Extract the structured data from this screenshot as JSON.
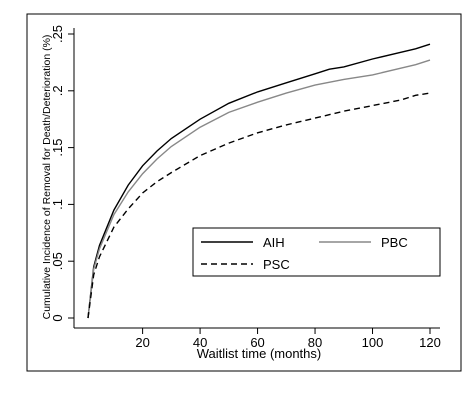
{
  "chart_data": {
    "type": "line",
    "xlabel": "Waitlist time (months)",
    "ylabel": "Cumulative Incidence of Removal for Death/Deterioration (%)",
    "xlim": [
      0,
      122
    ],
    "ylim": [
      0,
      0.25
    ],
    "xticks": [
      20,
      40,
      60,
      80,
      100,
      120
    ],
    "xtick_labels": [
      "20",
      "40",
      "60",
      "80",
      "100",
      "120"
    ],
    "yticks": [
      0,
      0.05,
      0.1,
      0.15,
      0.2,
      0.25
    ],
    "ytick_labels": [
      "0",
      ".05",
      ".1",
      ".15",
      ".2",
      ".25"
    ],
    "grid": false,
    "legend_position": "lower-right",
    "series": [
      {
        "name": "AIH",
        "color": "#000000",
        "dash": "solid",
        "x": [
          1,
          3,
          5,
          10,
          15,
          20,
          25,
          30,
          40,
          50,
          60,
          70,
          80,
          85,
          90,
          100,
          110,
          115,
          120
        ],
        "y": [
          0.0,
          0.045,
          0.064,
          0.095,
          0.117,
          0.134,
          0.147,
          0.158,
          0.175,
          0.189,
          0.199,
          0.207,
          0.215,
          0.219,
          0.221,
          0.228,
          0.234,
          0.237,
          0.241
        ]
      },
      {
        "name": "PBC",
        "color": "#888888",
        "dash": "solid",
        "x": [
          1,
          3,
          5,
          10,
          15,
          20,
          25,
          30,
          40,
          50,
          60,
          70,
          80,
          90,
          100,
          110,
          115,
          120
        ],
        "y": [
          0.0,
          0.043,
          0.061,
          0.091,
          0.111,
          0.127,
          0.14,
          0.151,
          0.168,
          0.181,
          0.19,
          0.198,
          0.205,
          0.21,
          0.214,
          0.22,
          0.223,
          0.227
        ]
      },
      {
        "name": "PSC",
        "color": "#000000",
        "dash": "dashed",
        "x": [
          1,
          3,
          5,
          10,
          15,
          20,
          25,
          30,
          40,
          50,
          60,
          70,
          80,
          90,
          100,
          110,
          115,
          120
        ],
        "y": [
          0.0,
          0.038,
          0.054,
          0.08,
          0.096,
          0.11,
          0.12,
          0.128,
          0.143,
          0.154,
          0.163,
          0.17,
          0.176,
          0.182,
          0.187,
          0.192,
          0.196,
          0.198
        ]
      }
    ]
  }
}
